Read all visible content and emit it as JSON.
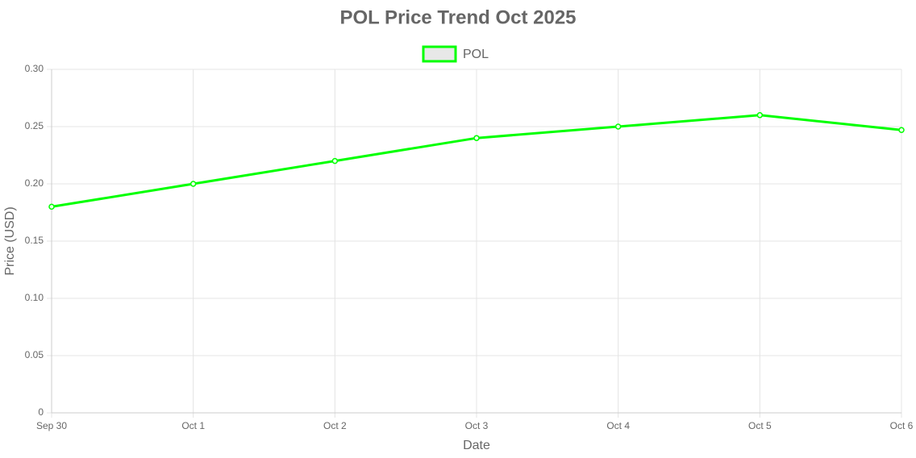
{
  "chart_data": {
    "type": "line",
    "title": "POL Price Trend Oct 2025",
    "x_label": "Date",
    "y_label": "Price (USD)",
    "categories": [
      "Sep 30",
      "Oct 1",
      "Oct 2",
      "Oct 3",
      "Oct 4",
      "Oct 5",
      "Oct 6"
    ],
    "series": [
      {
        "name": "POL",
        "color": "#00ff00",
        "values": [
          0.18,
          0.2,
          0.22,
          0.24,
          0.25,
          0.26,
          0.247
        ]
      }
    ],
    "ylim": [
      0,
      0.3
    ],
    "yticks": [
      0,
      0.05,
      {
        "value": 0.1,
        "label": "0.10"
      },
      0.15,
      {
        "value": 0.2,
        "label": "0.20"
      },
      0.25,
      {
        "value": 0.3,
        "label": "0.30"
      }
    ],
    "grid": true,
    "legend": "top"
  }
}
